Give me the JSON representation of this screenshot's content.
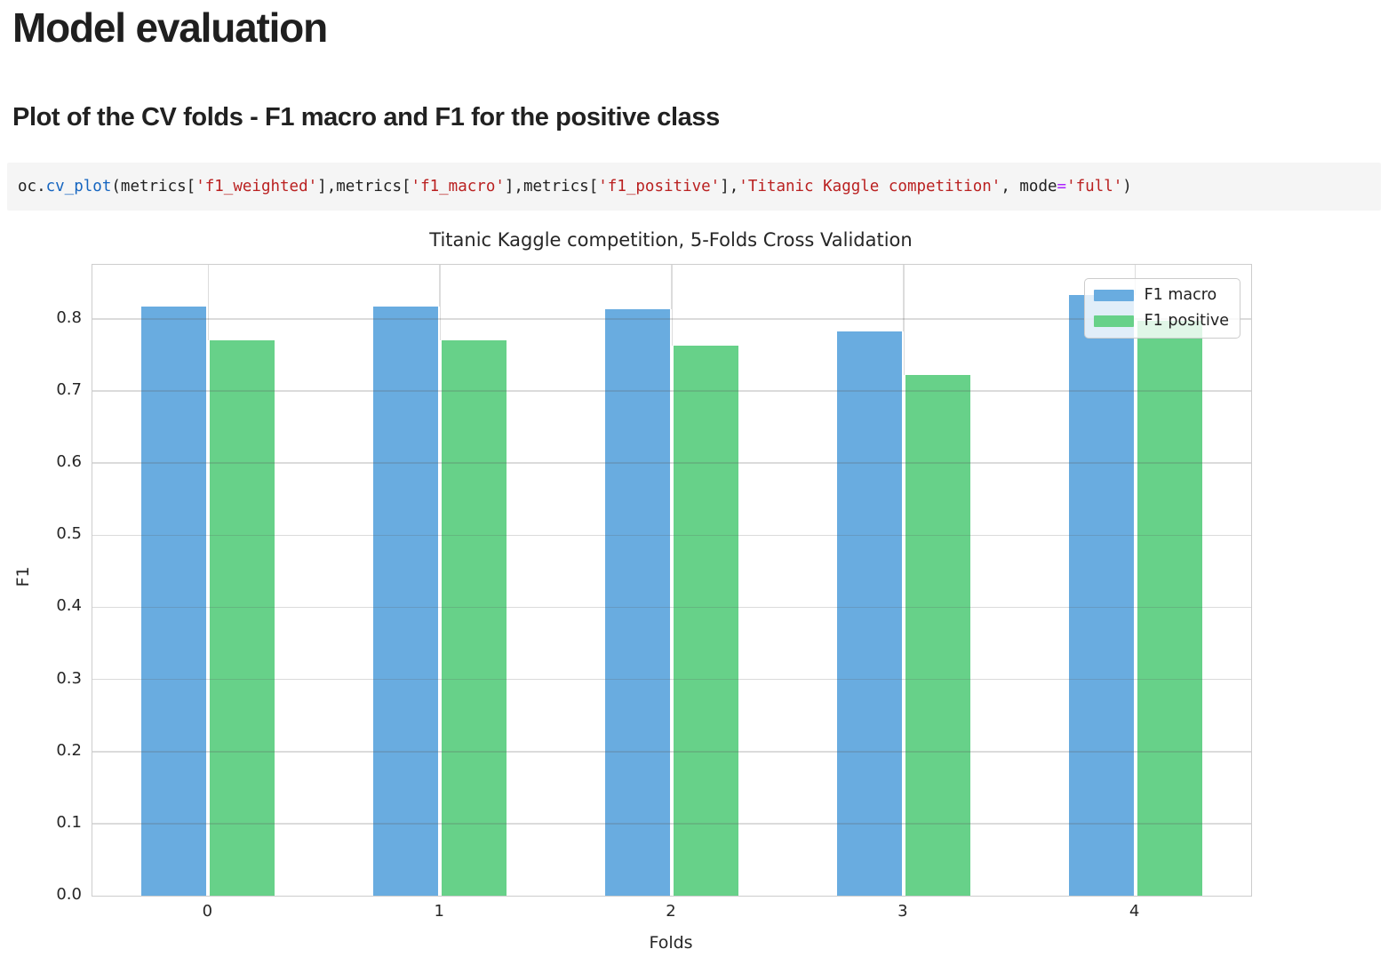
{
  "page": {
    "title": "Model evaluation",
    "subtitle": "Plot of the CV folds - F1 macro and F1 for the positive class"
  },
  "code_cell": {
    "background": "#f5f5f5",
    "tokens": [
      {
        "text": "oc.",
        "type": "plain"
      },
      {
        "text": "cv_plot",
        "type": "func"
      },
      {
        "text": "(metrics[",
        "type": "plain"
      },
      {
        "text": "'f1_weighted'",
        "type": "str"
      },
      {
        "text": "],metrics[",
        "type": "plain"
      },
      {
        "text": "'f1_macro'",
        "type": "str"
      },
      {
        "text": "],metrics[",
        "type": "plain"
      },
      {
        "text": "'f1_positive'",
        "type": "str"
      },
      {
        "text": "],",
        "type": "plain"
      },
      {
        "text": "'Titanic Kaggle competition'",
        "type": "str"
      },
      {
        "text": ", mode",
        "type": "plain"
      },
      {
        "text": "=",
        "type": "op"
      },
      {
        "text": "'full'",
        "type": "str"
      },
      {
        "text": ")",
        "type": "plain"
      }
    ],
    "syntax_colors": {
      "plain": "#212121",
      "func": "#1565c0",
      "str": "#ba2121",
      "op": "#aa22ff"
    }
  },
  "chart_data": {
    "type": "bar",
    "title": "Titanic Kaggle competition, 5-Folds Cross Validation",
    "xlabel": "Folds",
    "ylabel": "F1",
    "categories": [
      "0",
      "1",
      "2",
      "3",
      "4"
    ],
    "series": [
      {
        "name": "F1 macro",
        "color": "#69ace0",
        "values": [
          0.817,
          0.817,
          0.814,
          0.783,
          0.833
        ]
      },
      {
        "name": "F1 positive",
        "color": "#67d189",
        "values": [
          0.77,
          0.77,
          0.763,
          0.722,
          0.797
        ]
      }
    ],
    "ylim": [
      0,
      0.875
    ],
    "yticks": [
      0.0,
      0.1,
      0.2,
      0.3,
      0.4,
      0.5,
      0.6,
      0.7,
      0.8
    ],
    "grid": true,
    "legend_position": "upper right"
  }
}
